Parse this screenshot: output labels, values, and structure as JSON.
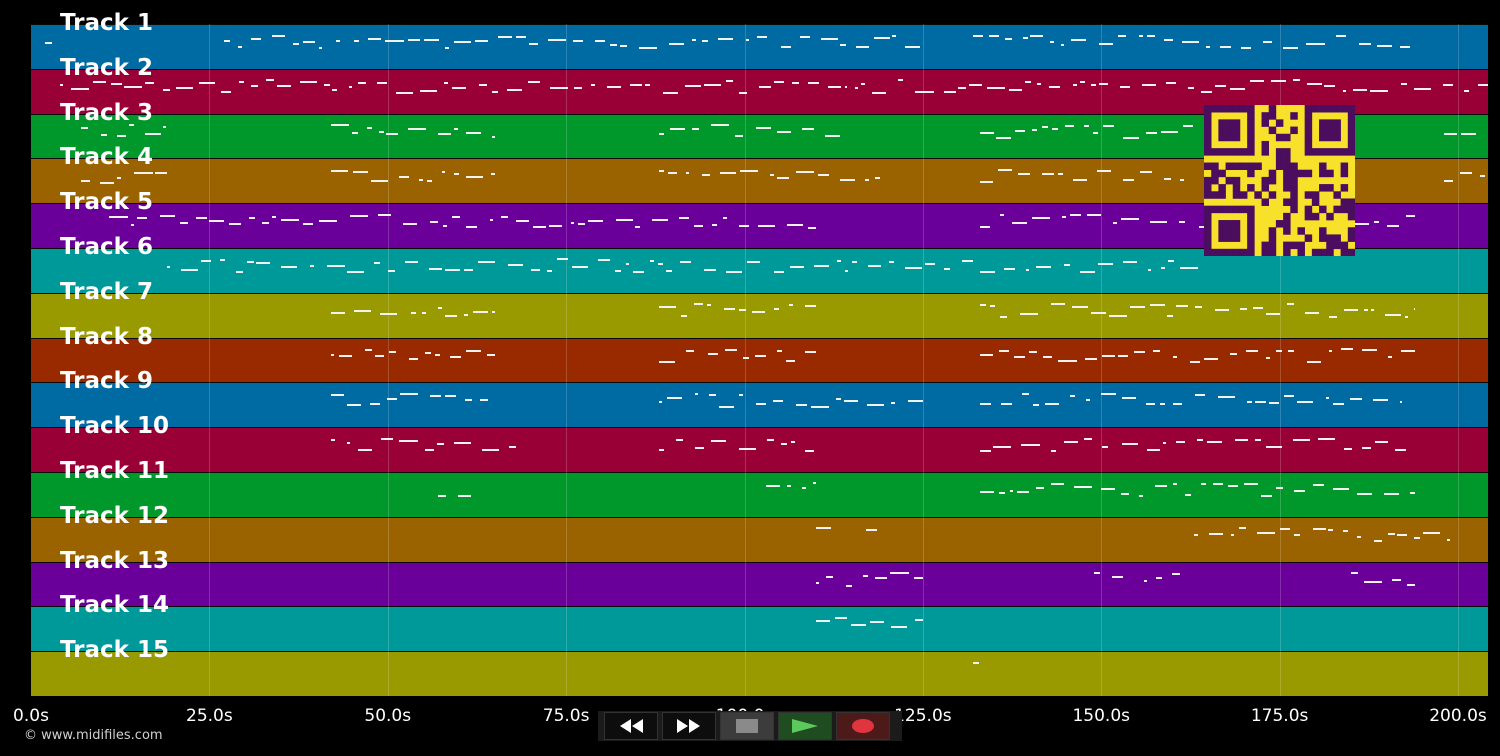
{
  "timeline": {
    "duration_s": 210,
    "ticks": [
      {
        "t": 0,
        "label": "0.0s"
      },
      {
        "t": 25,
        "label": "25.0s"
      },
      {
        "t": 50,
        "label": "50.0s"
      },
      {
        "t": 75,
        "label": "75.0s"
      },
      {
        "t": 100,
        "label": "100.0s"
      },
      {
        "t": 125,
        "label": "125.0s"
      },
      {
        "t": 150,
        "label": "150.0s"
      },
      {
        "t": 175,
        "label": "175.0s"
      },
      {
        "t": 200,
        "label": "200.0s"
      }
    ]
  },
  "lane_colors": [
    "#006aa3",
    "#990036",
    "#00982a",
    "#9a6300",
    "#6a0099",
    "#009999",
    "#999900",
    "#992a00"
  ],
  "tracks": [
    {
      "label": "Track 1",
      "note_ranges": [
        [
          2,
          3
        ],
        [
          27,
          125
        ],
        [
          132,
          194
        ]
      ]
    },
    {
      "label": "Track 2",
      "note_ranges": [
        [
          4,
          210
        ]
      ]
    },
    {
      "label": "Track 3",
      "note_ranges": [
        [
          7,
          19
        ],
        [
          42,
          65
        ],
        [
          88,
          114
        ],
        [
          133,
          163
        ],
        [
          198,
          210
        ]
      ]
    },
    {
      "label": "Track 4",
      "note_ranges": [
        [
          7,
          19
        ],
        [
          42,
          65
        ],
        [
          88,
          119
        ],
        [
          133,
          163
        ],
        [
          198,
          210
        ]
      ]
    },
    {
      "label": "Track 5",
      "note_ranges": [
        [
          11,
          110
        ],
        [
          133,
          194
        ]
      ]
    },
    {
      "label": "Track 6",
      "note_ranges": [
        [
          19,
          164
        ]
      ]
    },
    {
      "label": "Track 7",
      "note_ranges": [
        [
          42,
          65
        ],
        [
          88,
          110
        ],
        [
          133,
          194
        ]
      ]
    },
    {
      "label": "Track 8",
      "note_ranges": [
        [
          42,
          65
        ],
        [
          88,
          110
        ],
        [
          133,
          194
        ]
      ]
    },
    {
      "label": "Track 9",
      "note_ranges": [
        [
          42,
          64
        ],
        [
          88,
          125
        ],
        [
          133,
          192
        ]
      ]
    },
    {
      "label": "Track 10",
      "note_ranges": [
        [
          42,
          68
        ],
        [
          88,
          110
        ],
        [
          133,
          194
        ]
      ]
    },
    {
      "label": "Track 11",
      "note_ranges": [
        [
          57,
          63
        ],
        [
          103,
          110
        ],
        [
          133,
          194
        ]
      ]
    },
    {
      "label": "Track 12",
      "note_ranges": [
        [
          110,
          113
        ],
        [
          117,
          120
        ],
        [
          163,
          200
        ]
      ]
    },
    {
      "label": "Track 13",
      "note_ranges": [
        [
          110,
          125
        ],
        [
          149,
          153
        ],
        [
          156,
          161
        ],
        [
          185,
          194
        ]
      ]
    },
    {
      "label": "Track 14",
      "note_ranges": [
        [
          110,
          125
        ]
      ]
    },
    {
      "label": "Track 15",
      "note_ranges": [
        [
          132,
          133
        ]
      ]
    }
  ],
  "transport": {
    "rewind_icon": "rewind-icon",
    "fast_forward_icon": "fast-forward-icon",
    "stop_icon": "stop-icon",
    "play_icon": "play-icon",
    "record_icon": "record-icon",
    "play_color": "#5cc95c",
    "record_color": "#e0353f"
  },
  "qr_icon": "qr-code-icon",
  "copyright": "© www.midifiles.com"
}
